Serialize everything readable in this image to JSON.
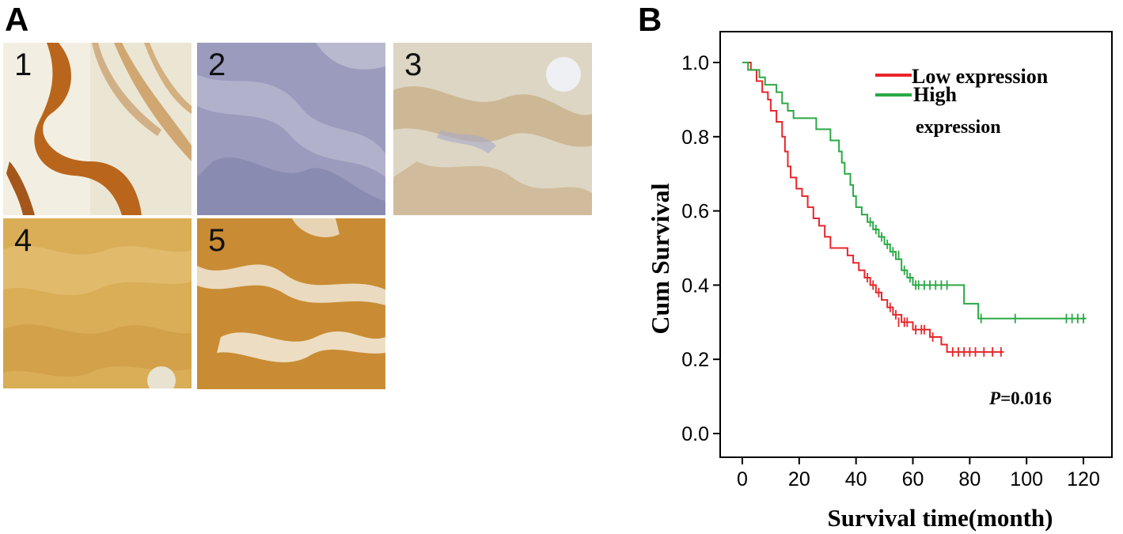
{
  "panel_a": {
    "letter": "A",
    "images": [
      {
        "label": "1",
        "stain": "strong"
      },
      {
        "label": "2",
        "stain": "negative"
      },
      {
        "label": "3",
        "stain": "weak"
      },
      {
        "label": "4",
        "stain": "moderate"
      },
      {
        "label": "5",
        "stain": "strong"
      }
    ]
  },
  "panel_b": {
    "letter": "B",
    "p_prefix": "P",
    "p_value": "=0.016"
  },
  "chart_data": {
    "type": "line",
    "subtype": "kaplan-meier step",
    "title": "",
    "xlabel": "Survival time(month)",
    "ylabel": "Cum Survival",
    "xlim": [
      0,
      120
    ],
    "ylim": [
      0.0,
      1.0
    ],
    "xticks": [
      "0",
      "20",
      "40",
      "60",
      "80",
      "100",
      "120"
    ],
    "yticks": [
      "0.0",
      "0.2",
      "0.4",
      "0.6",
      "0.8",
      "1.0"
    ],
    "grid": false,
    "legend_position": "top-right",
    "legend": [
      {
        "label": "Low expression",
        "color": "#e8262a"
      },
      {
        "label_line1": "High",
        "label_line2": "expression",
        "color": "#2aa845"
      }
    ],
    "annotation": "P=0.016",
    "series": [
      {
        "name": "Low expression",
        "color": "#e8262a",
        "steps": [
          [
            0,
            1.0
          ],
          [
            3,
            0.98
          ],
          [
            5,
            0.95
          ],
          [
            7,
            0.92
          ],
          [
            9,
            0.9
          ],
          [
            10,
            0.87
          ],
          [
            12,
            0.84
          ],
          [
            14,
            0.8
          ],
          [
            15,
            0.76
          ],
          [
            16,
            0.72
          ],
          [
            17,
            0.69
          ],
          [
            19,
            0.66
          ],
          [
            21,
            0.64
          ],
          [
            23,
            0.61
          ],
          [
            25,
            0.58
          ],
          [
            27,
            0.56
          ],
          [
            29,
            0.53
          ],
          [
            31,
            0.5
          ],
          [
            37,
            0.48
          ],
          [
            39,
            0.46
          ],
          [
            41,
            0.44
          ],
          [
            43,
            0.42
          ],
          [
            45,
            0.4
          ],
          [
            47,
            0.38
          ],
          [
            49,
            0.36
          ],
          [
            51,
            0.34
          ],
          [
            53,
            0.32
          ],
          [
            56,
            0.3
          ],
          [
            60,
            0.28
          ],
          [
            66,
            0.26
          ],
          [
            70,
            0.24
          ],
          [
            72,
            0.22
          ],
          [
            92,
            0.22
          ]
        ],
        "censored": [
          [
            44,
            0.42
          ],
          [
            46,
            0.4
          ],
          [
            48,
            0.38
          ],
          [
            52,
            0.34
          ],
          [
            54,
            0.32
          ],
          [
            55,
            0.3
          ],
          [
            57,
            0.3
          ],
          [
            58,
            0.3
          ],
          [
            61,
            0.28
          ],
          [
            63,
            0.28
          ],
          [
            64,
            0.28
          ],
          [
            67,
            0.26
          ],
          [
            74,
            0.22
          ],
          [
            76,
            0.22
          ],
          [
            78,
            0.22
          ],
          [
            80,
            0.22
          ],
          [
            82,
            0.22
          ],
          [
            85,
            0.22
          ],
          [
            88,
            0.22
          ],
          [
            91,
            0.22
          ]
        ]
      },
      {
        "name": "High",
        "color": "#2aa845",
        "steps": [
          [
            0,
            1.0
          ],
          [
            2,
            0.98
          ],
          [
            6,
            0.96
          ],
          [
            8,
            0.94
          ],
          [
            12,
            0.92
          ],
          [
            14,
            0.89
          ],
          [
            16,
            0.87
          ],
          [
            18,
            0.85
          ],
          [
            26,
            0.82
          ],
          [
            31,
            0.79
          ],
          [
            34,
            0.76
          ],
          [
            35,
            0.73
          ],
          [
            36,
            0.7
          ],
          [
            38,
            0.67
          ],
          [
            39,
            0.64
          ],
          [
            40,
            0.61
          ],
          [
            42,
            0.59
          ],
          [
            44,
            0.57
          ],
          [
            46,
            0.55
          ],
          [
            48,
            0.53
          ],
          [
            50,
            0.51
          ],
          [
            52,
            0.49
          ],
          [
            54,
            0.47
          ],
          [
            56,
            0.44
          ],
          [
            58,
            0.42
          ],
          [
            60,
            0.4
          ],
          [
            78,
            0.35
          ],
          [
            83,
            0.31
          ],
          [
            121,
            0.31
          ]
        ],
        "censored": [
          [
            45,
            0.57
          ],
          [
            47,
            0.55
          ],
          [
            49,
            0.53
          ],
          [
            51,
            0.51
          ],
          [
            53,
            0.49
          ],
          [
            55,
            0.48
          ],
          [
            57,
            0.44
          ],
          [
            59,
            0.42
          ],
          [
            61,
            0.4
          ],
          [
            62,
            0.4
          ],
          [
            64,
            0.4
          ],
          [
            66,
            0.4
          ],
          [
            68,
            0.4
          ],
          [
            70,
            0.4
          ],
          [
            72,
            0.4
          ],
          [
            84,
            0.31
          ],
          [
            96,
            0.31
          ],
          [
            114,
            0.31
          ],
          [
            116,
            0.31
          ],
          [
            118,
            0.31
          ],
          [
            120,
            0.31
          ]
        ]
      }
    ]
  }
}
